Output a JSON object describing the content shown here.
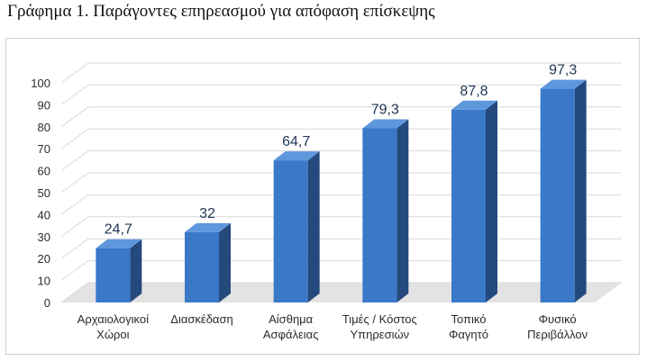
{
  "caption": "Γράφημα 1. Παράγοντες επηρεασμού για απόφαση επίσκεψης",
  "chart_data": {
    "type": "bar",
    "style": "3d-column",
    "categories": [
      [
        "Αρχαιολογικοί",
        "Χώροι"
      ],
      [
        "Διασκέδαση"
      ],
      [
        "Αίσθημα",
        "Ασφάλειας"
      ],
      [
        "Τιμές / Κόστος",
        "Υπηρεσιών"
      ],
      [
        "Τοπικό",
        "Φαγητό"
      ],
      [
        "Φυσικό",
        "Περιβάλλον"
      ]
    ],
    "values": [
      24.7,
      32,
      64.7,
      79.3,
      87.8,
      97.3
    ],
    "value_labels": [
      "24,7",
      "32",
      "64,7",
      "79,3",
      "87,8",
      "97,3"
    ],
    "ylim": [
      0,
      100
    ],
    "yticks": [
      0,
      10,
      20,
      30,
      40,
      50,
      60,
      70,
      80,
      90,
      100
    ],
    "grid": true,
    "legend": "none",
    "colors": {
      "bar_front": "#3a78c8",
      "bar_side": "#24497d",
      "bar_top": "#5f97dc",
      "grid": "#d9d9d9",
      "floor": "#e3e3e3"
    }
  }
}
